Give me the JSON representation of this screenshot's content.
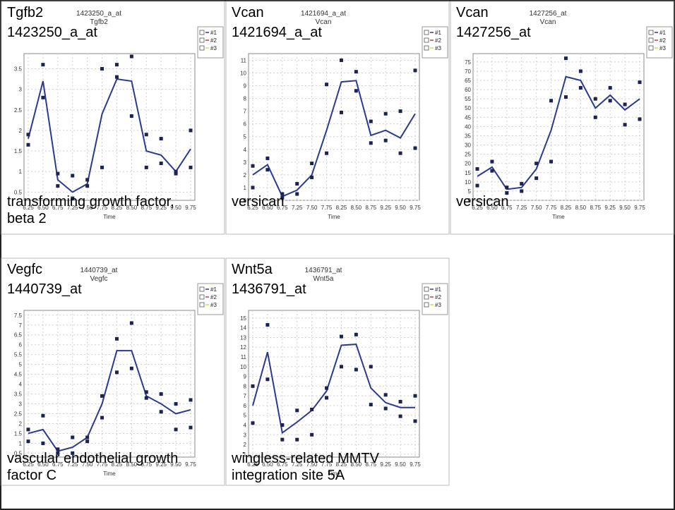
{
  "chart_data": [
    {
      "type": "line",
      "symbol": "Tgfb2",
      "probe": "1423250_a_at",
      "description": "transforming growth factor, beta 2",
      "title": "1423250_a_at",
      "subtitle": "Tgfb2",
      "xlabel": "Time",
      "categories": [
        "6.25",
        "6.50",
        "6.75",
        "7.25",
        "7.50",
        "7.75",
        "8.25",
        "8.50",
        "8.75",
        "9.25",
        "9.50",
        "9.75"
      ],
      "ylim": [
        0.3,
        3.8
      ],
      "yticks": [
        0.5,
        1,
        1.5,
        2,
        2.5,
        3,
        3.5
      ],
      "grid": true,
      "legend": [
        "#1",
        "#2",
        "#3"
      ],
      "series": [
        {
          "name": "#1",
          "color": "#2b3a8f",
          "values": [
            1.8,
            3.2,
            0.8,
            0.5,
            0.7,
            2.4,
            3.25,
            3.2,
            1.5,
            1.4,
            1.0,
            1.55
          ],
          "replicates": [
            [
              1.9,
              1.65
            ],
            [
              3.6,
              2.8
            ],
            [
              0.95,
              0.65
            ],
            [
              0.9,
              0.35
            ],
            [
              0.8,
              0.65
            ],
            [
              3.5,
              1.1
            ],
            [
              3.6,
              3.3
            ],
            [
              3.8,
              2.35
            ],
            [
              1.9,
              1.1
            ],
            [
              1.8,
              1.2
            ],
            [
              1.0,
              0.95
            ],
            [
              2.0,
              1.1
            ]
          ]
        }
      ]
    },
    {
      "type": "line",
      "symbol": "Vcan",
      "probe": "1421694_a_at",
      "description": "versican",
      "title": "1421694_a_at",
      "subtitle": "Vcan",
      "xlabel": "Time",
      "categories": [
        "6.25",
        "6.50",
        "6.75",
        "7.25",
        "7.50",
        "7.75",
        "8.25",
        "8.50",
        "8.75",
        "9.25",
        "9.50",
        "9.75"
      ],
      "ylim": [
        0,
        11.3
      ],
      "yticks": [
        0,
        1,
        2,
        3,
        4,
        5,
        6,
        7,
        8,
        9,
        10,
        11
      ],
      "grid": true,
      "legend": [
        "#1",
        "#2",
        "#3"
      ],
      "series": [
        {
          "name": "#1",
          "color": "#2b3a8f",
          "values": [
            2.0,
            2.8,
            0.3,
            0.8,
            2.0,
            5.5,
            9.3,
            9.4,
            5.1,
            5.5,
            4.9,
            6.8
          ],
          "replicates": [
            [
              2.7,
              1.0
            ],
            [
              3.3,
              2.4
            ],
            [
              0.5,
              0.2
            ],
            [
              1.3,
              0.5
            ],
            [
              2.9,
              1.8
            ],
            [
              9.1,
              3.7
            ],
            [
              11,
              6.9
            ],
            [
              10.1,
              8.6
            ],
            [
              6.2,
              4.5
            ],
            [
              6.8,
              4.7
            ],
            [
              7.0,
              3.7
            ],
            [
              10.2,
              4.1
            ]
          ]
        }
      ]
    },
    {
      "type": "line",
      "symbol": "Vcan",
      "probe": "1427256_at",
      "description": "versican",
      "title": "1427256_at",
      "subtitle": "Vcan",
      "xlabel": "Time",
      "categories": [
        "6.25",
        "6.50",
        "6.75",
        "7.25",
        "7.50",
        "7.75",
        "8.25",
        "8.50",
        "8.75",
        "9.25",
        "9.50",
        "9.75"
      ],
      "ylim": [
        0,
        78
      ],
      "yticks": [
        0,
        5,
        10,
        15,
        20,
        25,
        30,
        35,
        40,
        45,
        50,
        55,
        60,
        65,
        70,
        75
      ],
      "grid": true,
      "legend": [
        "#1",
        "#2",
        "#3"
      ],
      "series": [
        {
          "name": "#1",
          "color": "#2b3a8f",
          "values": [
            13,
            18,
            6,
            7,
            17,
            38,
            67,
            65,
            50,
            57,
            49,
            55
          ],
          "replicates": [
            [
              17,
              8
            ],
            [
              21,
              16
            ],
            [
              7,
              4
            ],
            [
              9,
              5
            ],
            [
              20,
              12
            ],
            [
              54,
              21
            ],
            [
              77,
              56
            ],
            [
              70,
              61
            ],
            [
              55,
              45
            ],
            [
              61,
              54
            ],
            [
              52,
              41
            ],
            [
              64,
              44
            ]
          ]
        }
      ]
    },
    {
      "type": "line",
      "symbol": "Vegfc",
      "probe": "1440739_at",
      "description": "vascular endothelial growth factor C",
      "title": "1440739_at",
      "subtitle": "Vegfc",
      "xlabel": "Time",
      "categories": [
        "6.25",
        "6.50",
        "6.75",
        "7.25",
        "7.50",
        "7.75",
        "8.25",
        "8.50",
        "8.75",
        "9.25",
        "9.50",
        "9.75"
      ],
      "ylim": [
        0.3,
        7.6
      ],
      "yticks": [
        0.5,
        1,
        1.5,
        2,
        2.5,
        3,
        3.5,
        4,
        4.5,
        5,
        5.5,
        6,
        6.5,
        7,
        7.5
      ],
      "grid": true,
      "legend": [
        "#1",
        "#2",
        "#3"
      ],
      "series": [
        {
          "name": "#1",
          "color": "#2b3a8f",
          "values": [
            1.5,
            1.7,
            0.6,
            0.8,
            1.3,
            3.0,
            5.7,
            5.7,
            3.4,
            3.0,
            2.5,
            2.7
          ],
          "replicates": [
            [
              1.7,
              1.1
            ],
            [
              2.4,
              1.0
            ],
            [
              0.7,
              0.5
            ],
            [
              1.3,
              0.5
            ],
            [
              1.3,
              1.1
            ],
            [
              3.4,
              2.3
            ],
            [
              6.3,
              4.6
            ],
            [
              7.1,
              4.8
            ],
            [
              3.6,
              3.3
            ],
            [
              3.5,
              2.6
            ],
            [
              3.0,
              1.7
            ],
            [
              3.2,
              1.8
            ]
          ]
        }
      ]
    },
    {
      "type": "line",
      "symbol": "Wnt5a",
      "probe": "1436791_at",
      "description": "wingless-related MMTV integration site 5A",
      "title": "1436791_at",
      "subtitle": "Wnt5a",
      "xlabel": "Time",
      "categories": [
        "6.25",
        "6.50",
        "6.75",
        "7.25",
        "7.50",
        "7.75",
        "8.25",
        "8.50",
        "8.75",
        "9.25",
        "9.50",
        "9.75"
      ],
      "ylim": [
        0.7,
        15.5
      ],
      "yticks": [
        1,
        2,
        3,
        4,
        5,
        6,
        7,
        8,
        9,
        10,
        11,
        12,
        13,
        14,
        15
      ],
      "grid": true,
      "legend": [
        "#1",
        "#2",
        "#3"
      ],
      "series": [
        {
          "name": "#1",
          "color": "#2b3a8f",
          "values": [
            6.0,
            11.5,
            3.2,
            4.3,
            5.5,
            7.5,
            12.2,
            12.3,
            7.8,
            6.3,
            5.8,
            5.8
          ],
          "replicates": [
            [
              8.0,
              4.2
            ],
            [
              14.3,
              8.7
            ],
            [
              4.0,
              2.5
            ],
            [
              5.5,
              2.5
            ],
            [
              5.6,
              3.0
            ],
            [
              7.8,
              6.8
            ],
            [
              13.1,
              10.0
            ],
            [
              13.3,
              9.7
            ],
            [
              10.0,
              6.1
            ],
            [
              7.1,
              5.7
            ],
            [
              6.4,
              4.9
            ],
            [
              7.0,
              4.4
            ]
          ]
        }
      ]
    }
  ]
}
